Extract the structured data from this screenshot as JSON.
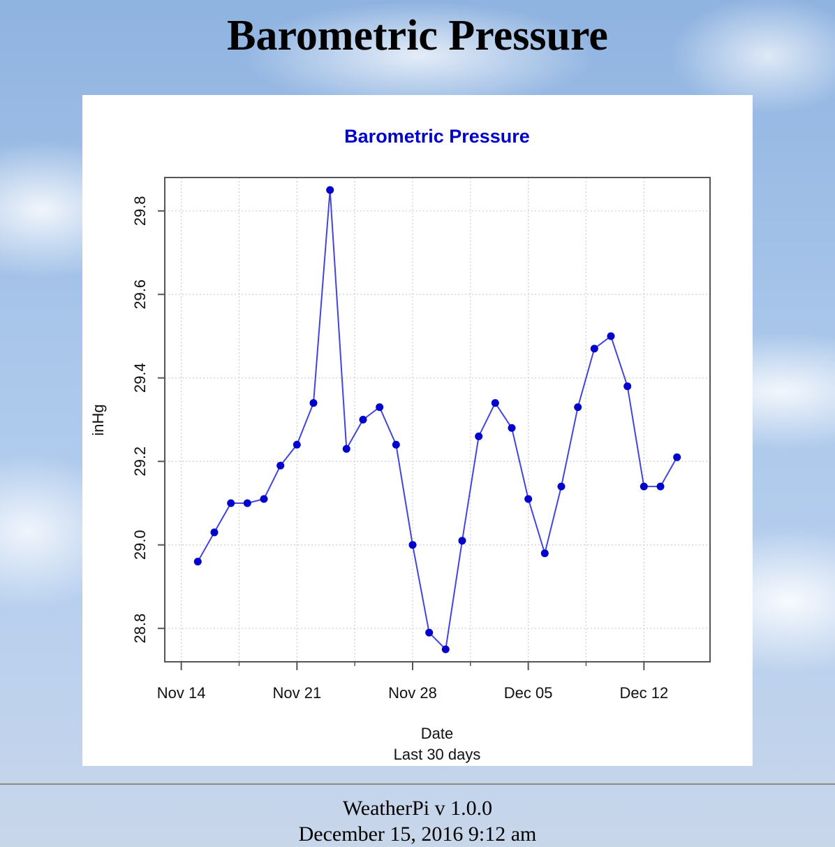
{
  "page": {
    "title": "Barometric Pressure"
  },
  "footer": {
    "version": "WeatherPi v 1.0.0",
    "timestamp": "December 15, 2016 9:12 am"
  },
  "colors": {
    "series": "#0000cc",
    "line": "#4444dd",
    "title": "#0000cc"
  },
  "chart_data": {
    "type": "line",
    "title": "Barometric Pressure",
    "xlabel": "Date",
    "xsublabel": "Last 30 days",
    "ylabel": "inHg",
    "x_tick_labels": [
      "Nov 14",
      "Nov 21",
      "Nov 28",
      "Dec 05",
      "Dec 12"
    ],
    "y_tick_labels": [
      "28.8",
      "29.0",
      "29.2",
      "29.4",
      "29.6",
      "29.8"
    ],
    "ylim": [
      28.72,
      29.88
    ],
    "xlim": [
      "2016-11-13",
      "2016-12-16"
    ],
    "grid": true,
    "series": [
      {
        "x": [
          "2016-11-15",
          "2016-11-16",
          "2016-11-17",
          "2016-11-18",
          "2016-11-19",
          "2016-11-20",
          "2016-11-21",
          "2016-11-22",
          "2016-11-23",
          "2016-11-24",
          "2016-11-25",
          "2016-11-26",
          "2016-11-27",
          "2016-11-28",
          "2016-11-29",
          "2016-11-30",
          "2016-12-01",
          "2016-12-02",
          "2016-12-03",
          "2016-12-04",
          "2016-12-05",
          "2016-12-06",
          "2016-12-07",
          "2016-12-08",
          "2016-12-09",
          "2016-12-10",
          "2016-12-11",
          "2016-12-12",
          "2016-12-13",
          "2016-12-14"
        ],
        "values": [
          28.96,
          29.03,
          29.1,
          29.1,
          29.11,
          29.19,
          29.24,
          29.34,
          29.85,
          29.23,
          29.3,
          29.33,
          29.24,
          29.0,
          28.79,
          28.75,
          29.01,
          29.26,
          29.34,
          29.28,
          29.11,
          28.98,
          29.14,
          29.33,
          29.47,
          29.5,
          29.38,
          29.14,
          29.14,
          29.21
        ]
      }
    ]
  }
}
